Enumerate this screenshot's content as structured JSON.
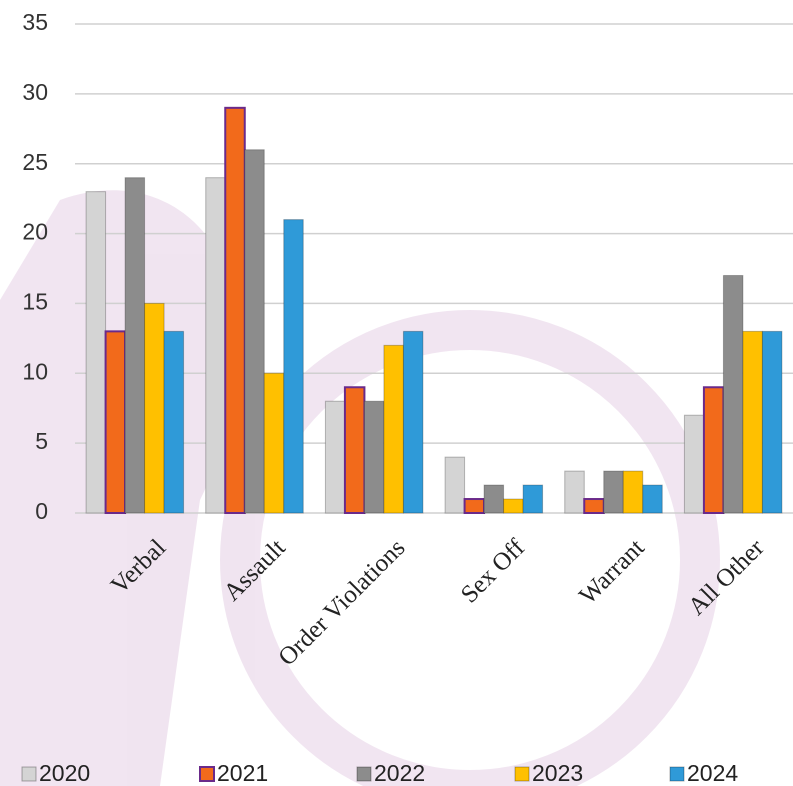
{
  "chart_data": {
    "type": "bar",
    "categories": [
      "Verbal",
      "Assault",
      "Order Violations",
      "Sex Off",
      "Warrant",
      "All Other"
    ],
    "series": [
      {
        "name": "2020",
        "color": "#d4d4d4",
        "values": [
          23,
          24,
          8,
          4,
          3,
          7
        ]
      },
      {
        "name": "2021",
        "color": "#f26a1b",
        "values": [
          13,
          29,
          9,
          1,
          1,
          9
        ]
      },
      {
        "name": "2022",
        "color": "#8c8c8c",
        "values": [
          24,
          26,
          8,
          2,
          3,
          17
        ]
      },
      {
        "name": "2023",
        "color": "#ffc000",
        "values": [
          15,
          10,
          12,
          1,
          3,
          13
        ]
      },
      {
        "name": "2024",
        "color": "#2f9ad8",
        "values": [
          13,
          21,
          13,
          2,
          2,
          13
        ]
      }
    ],
    "ylim": [
      0,
      35
    ],
    "yticks": [
      0,
      5,
      10,
      15,
      20,
      25,
      30,
      35
    ],
    "grid": true,
    "legend": "bottom"
  }
}
